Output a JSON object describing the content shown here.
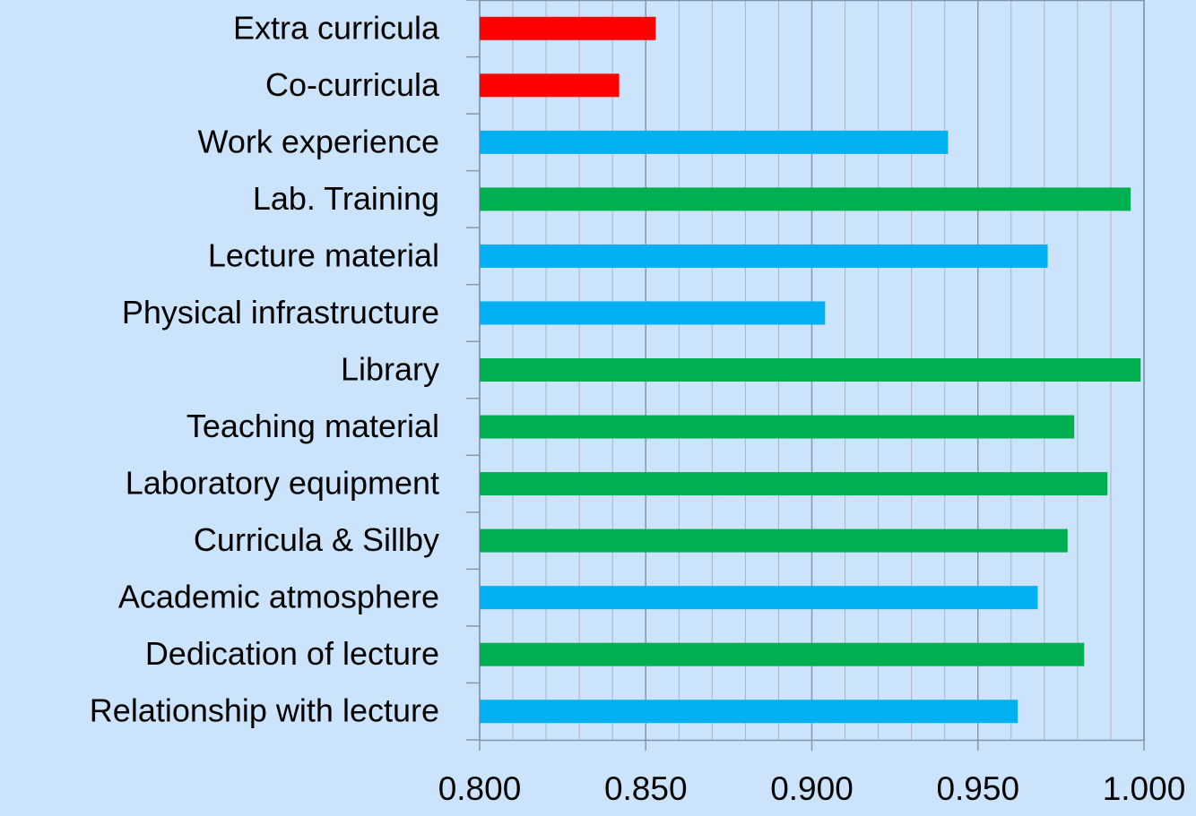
{
  "chart_data": {
    "type": "hbar",
    "categories": [
      "Extra curricula",
      "Co-curricula",
      "Work experience",
      "Lab. Training",
      "Lecture material",
      "Physical infrastructure",
      "Library",
      "Teaching material",
      "Laboratory equipment",
      "Curricula & Sillby",
      "Academic atmosphere",
      "Dedication of lecture",
      "Relationship with lecture"
    ],
    "values": [
      0.853,
      0.842,
      0.941,
      0.996,
      0.971,
      0.904,
      0.999,
      0.979,
      0.989,
      0.977,
      0.968,
      0.982,
      0.962
    ],
    "colors": [
      "#ff0000",
      "#ff0000",
      "#00b0f0",
      "#00b050",
      "#00b0f0",
      "#00b0f0",
      "#00b050",
      "#00b050",
      "#00b050",
      "#00b050",
      "#00b0f0",
      "#00b050",
      "#00b0f0"
    ],
    "xlim": [
      0.8,
      1.0
    ],
    "xticks": [
      {
        "value": 0.8,
        "label": "0.800"
      },
      {
        "value": 0.85,
        "label": "0.850"
      },
      {
        "value": 0.9,
        "label": "0.900"
      },
      {
        "value": 0.95,
        "label": "0.950"
      },
      {
        "value": 1.0,
        "label": "1.000"
      }
    ],
    "minor_xticks": [
      0.81,
      0.82,
      0.83,
      0.84,
      0.86,
      0.87,
      0.88,
      0.89,
      0.91,
      0.92,
      0.93,
      0.94,
      0.96,
      0.97,
      0.98,
      0.99
    ],
    "grid": true
  }
}
